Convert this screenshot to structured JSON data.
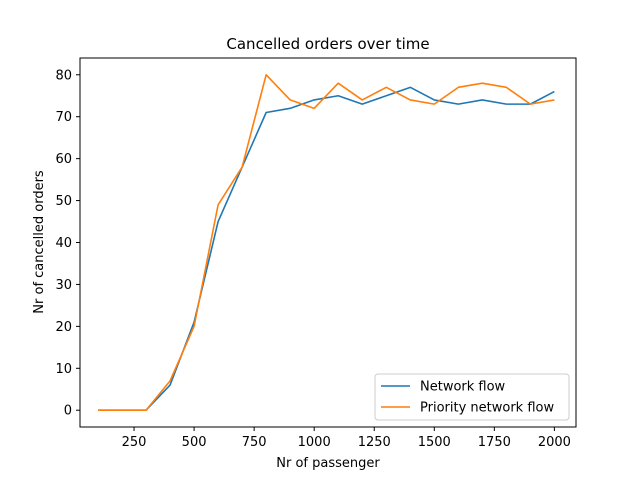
{
  "chart_data": {
    "type": "line",
    "title": "Cancelled orders over time",
    "xlabel": "Nr of passenger",
    "ylabel": "Nr of cancelled orders",
    "xlim": [
      25,
      2090
    ],
    "ylim": [
      -4,
      84
    ],
    "xticks": [
      250,
      500,
      750,
      1000,
      1250,
      1500,
      1750,
      2000
    ],
    "yticks": [
      0,
      10,
      20,
      30,
      40,
      50,
      60,
      70,
      80
    ],
    "grid": false,
    "legend_position": "lower-right",
    "x": [
      100,
      200,
      300,
      400,
      500,
      600,
      700,
      800,
      900,
      1000,
      1100,
      1200,
      1300,
      1400,
      1500,
      1600,
      1700,
      1800,
      1900,
      2000
    ],
    "series": [
      {
        "name": "Network flow",
        "color": "#1f77b4",
        "values": [
          0,
          0,
          0,
          6,
          21,
          45,
          58,
          71,
          72,
          74,
          75,
          73,
          75,
          77,
          74,
          73,
          74,
          73,
          73,
          76
        ]
      },
      {
        "name": "Priority network flow",
        "color": "#ff7f0e",
        "values": [
          0,
          0,
          0,
          7,
          20,
          49,
          58,
          80,
          74,
          72,
          78,
          74,
          77,
          74,
          73,
          77,
          78,
          77,
          73,
          74
        ]
      }
    ]
  }
}
